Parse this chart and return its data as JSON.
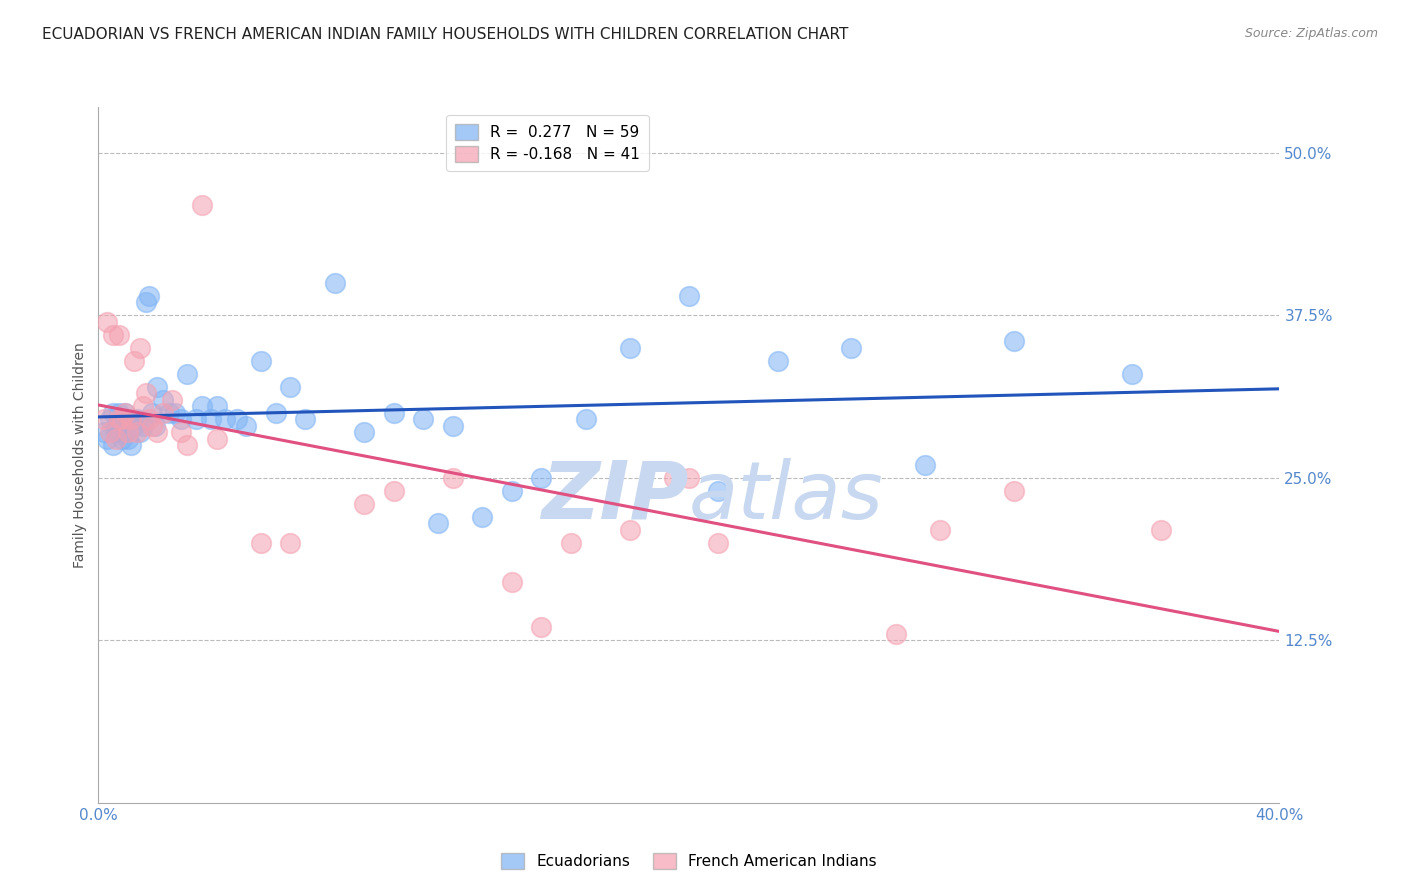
{
  "title": "ECUADORIAN VS FRENCH AMERICAN INDIAN FAMILY HOUSEHOLDS WITH CHILDREN CORRELATION CHART",
  "source": "Source: ZipAtlas.com",
  "ylabel": "Family Households with Children",
  "ytick_labels": [
    "50.0%",
    "37.5%",
    "25.0%",
    "12.5%"
  ],
  "ytick_values": [
    0.5,
    0.375,
    0.25,
    0.125
  ],
  "xmin": 0.0,
  "xmax": 0.4,
  "ymin": 0.0,
  "ymax": 0.535,
  "legend_blue_r": "0.277",
  "legend_blue_n": "59",
  "legend_pink_r": "-0.168",
  "legend_pink_n": "41",
  "blue_color": "#7EB3F5",
  "pink_color": "#F4A0B0",
  "blue_line_color": "#2255BB",
  "pink_line_color": "#E05080",
  "background_color": "#FFFFFF",
  "grid_color": "#BBBBBB",
  "title_color": "#222222",
  "axis_label_color": "#5588CC",
  "watermark_color": "#C8D8F0",
  "ecuadorians_x": [
    0.002,
    0.003,
    0.004,
    0.005,
    0.005,
    0.006,
    0.006,
    0.007,
    0.007,
    0.008,
    0.008,
    0.009,
    0.009,
    0.01,
    0.01,
    0.011,
    0.012,
    0.013,
    0.014,
    0.015,
    0.016,
    0.017,
    0.018,
    0.019,
    0.02,
    0.022,
    0.024,
    0.026,
    0.028,
    0.03,
    0.033,
    0.035,
    0.038,
    0.04,
    0.043,
    0.047,
    0.05,
    0.055,
    0.06,
    0.065,
    0.07,
    0.08,
    0.09,
    0.1,
    0.11,
    0.115,
    0.12,
    0.13,
    0.14,
    0.15,
    0.165,
    0.18,
    0.2,
    0.21,
    0.23,
    0.255,
    0.28,
    0.31,
    0.35
  ],
  "ecuadorians_y": [
    0.285,
    0.28,
    0.295,
    0.275,
    0.3,
    0.285,
    0.29,
    0.29,
    0.3,
    0.28,
    0.295,
    0.285,
    0.3,
    0.28,
    0.295,
    0.275,
    0.29,
    0.295,
    0.285,
    0.29,
    0.385,
    0.39,
    0.3,
    0.29,
    0.32,
    0.31,
    0.3,
    0.3,
    0.295,
    0.33,
    0.295,
    0.305,
    0.295,
    0.305,
    0.295,
    0.295,
    0.29,
    0.34,
    0.3,
    0.32,
    0.295,
    0.4,
    0.285,
    0.3,
    0.295,
    0.215,
    0.29,
    0.22,
    0.24,
    0.25,
    0.295,
    0.35,
    0.39,
    0.24,
    0.34,
    0.35,
    0.26,
    0.355,
    0.33
  ],
  "french_x": [
    0.002,
    0.003,
    0.004,
    0.005,
    0.006,
    0.007,
    0.007,
    0.008,
    0.009,
    0.01,
    0.011,
    0.012,
    0.013,
    0.014,
    0.015,
    0.016,
    0.017,
    0.018,
    0.02,
    0.022,
    0.025,
    0.028,
    0.03,
    0.035,
    0.04,
    0.055,
    0.065,
    0.09,
    0.1,
    0.12,
    0.14,
    0.15,
    0.16,
    0.18,
    0.195,
    0.2,
    0.21,
    0.27,
    0.285,
    0.31,
    0.36
  ],
  "french_y": [
    0.295,
    0.37,
    0.285,
    0.36,
    0.28,
    0.295,
    0.36,
    0.295,
    0.3,
    0.285,
    0.295,
    0.34,
    0.285,
    0.35,
    0.305,
    0.315,
    0.295,
    0.29,
    0.285,
    0.3,
    0.31,
    0.285,
    0.275,
    0.46,
    0.28,
    0.2,
    0.2,
    0.23,
    0.24,
    0.25,
    0.17,
    0.135,
    0.2,
    0.21,
    0.25,
    0.25,
    0.2,
    0.13,
    0.21,
    0.24,
    0.21
  ],
  "title_fontsize": 11,
  "source_fontsize": 9,
  "axis_tick_fontsize": 11,
  "legend_fontsize": 11
}
